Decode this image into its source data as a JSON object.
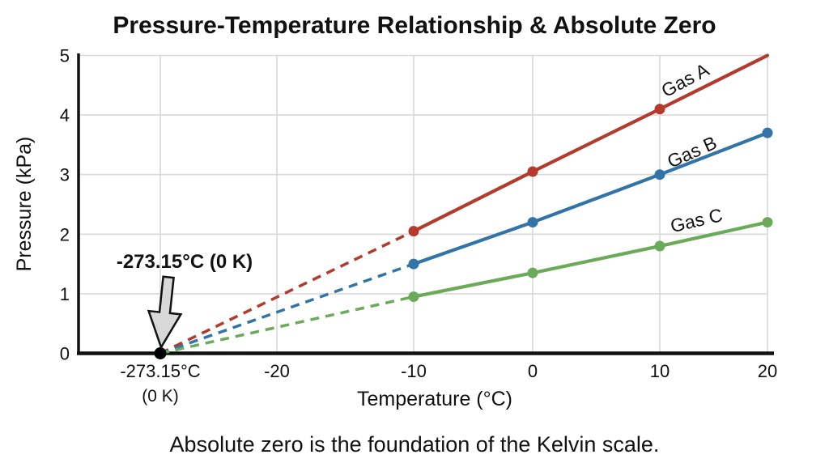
{
  "chart_data": {
    "type": "line",
    "title": "Pressure-Temperature Relationship & Absolute Zero",
    "xlabel": "Temperature (°C)",
    "ylabel": "Pressure (kPa)",
    "caption": "Absolute zero is the foundation of the Kelvin scale.",
    "x": [
      -10,
      0,
      10,
      20
    ],
    "series": [
      {
        "name": "Gas A",
        "color": "#b43a2c",
        "values": [
          2.05,
          3.05,
          4.1,
          5.0
        ]
      },
      {
        "name": "Gas B",
        "color": "#3274a8",
        "values": [
          1.5,
          2.2,
          3.0,
          3.7
        ]
      },
      {
        "name": "Gas C",
        "color": "#6aaa59",
        "values": [
          0.95,
          1.35,
          1.8,
          2.2
        ]
      }
    ],
    "extrapolation": {
      "style": "dashed",
      "origin": {
        "temp_c": -273.15,
        "pressure_kpa": 0
      }
    },
    "x_ticks": [
      {
        "value": -273.15,
        "label": "-273.15°C",
        "sublabel": "(0 K)"
      },
      {
        "value": -20,
        "label": "-20"
      },
      {
        "value": -10,
        "label": "-10"
      },
      {
        "value": 0,
        "label": "0"
      },
      {
        "value": 10,
        "label": "10"
      },
      {
        "value": 20,
        "label": "20"
      }
    ],
    "y_ticks": [
      {
        "value": 0,
        "label": "0"
      },
      {
        "value": 1,
        "label": "1"
      },
      {
        "value": 2,
        "label": "2"
      },
      {
        "value": 3,
        "label": "3"
      },
      {
        "value": 4,
        "label": "4"
      },
      {
        "value": 5,
        "label": "5"
      }
    ],
    "ylim": [
      0,
      5
    ],
    "grid": true,
    "legend_position": "inline-labels",
    "annotation": {
      "text": "-273.15°C (0 K)",
      "arrow": true,
      "points_to": {
        "temp_c": -273.15,
        "pressure_kpa": 0
      }
    },
    "colors": {
      "grid": "#d9d9d9",
      "axis": "#111111",
      "arrow_fill": "#d8d8d8",
      "origin_dot": "#000000",
      "background": "#ffffff",
      "text": "#111111"
    }
  }
}
